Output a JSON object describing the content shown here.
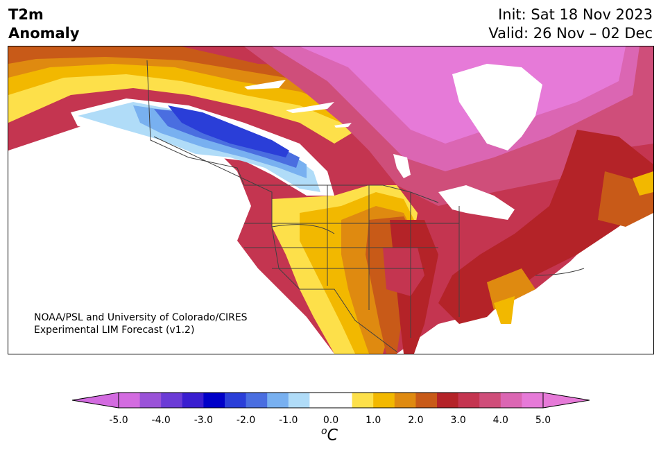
{
  "title": {
    "line1": "T2m",
    "line2": "Anomaly"
  },
  "header": {
    "init": "Init: Sat 18 Nov 2023",
    "valid": "Valid: 26 Nov – 02 Dec"
  },
  "credit": {
    "line1": "NOAA/PSL and University of Colorado/CIRES",
    "line2": "Experimental LIM Forecast (v1.2)"
  },
  "colorbar": {
    "ticks": [
      "-5.0",
      "-4.0",
      "-3.0",
      "-2.0",
      "-1.0",
      "0.0",
      "1.0",
      "2.0",
      "3.0",
      "4.0",
      "5.0"
    ],
    "unit_prefix": "o",
    "unit": "C",
    "colors": [
      "#d36be0",
      "#9a52d8",
      "#6b3bd6",
      "#3a1ed0",
      "#0000c8",
      "#2a3ed8",
      "#4a6ee0",
      "#78b0f0",
      "#b0dcf8",
      "#ffffff",
      "#ffffff",
      "#fde04a",
      "#f2b800",
      "#df8a10",
      "#c85a18",
      "#b42328",
      "#c43550",
      "#cf4e7a",
      "#db66b3",
      "#e67ad8"
    ],
    "extend_low": "#d36be0",
    "extend_high": "#e67ad8"
  },
  "map": {
    "region": "North America",
    "variable": "2 m temperature anomaly",
    "colors": {
      "pink": "#e67ad8",
      "magenta": "#db66b3",
      "rose": "#cf4e7a",
      "crimson": "#c43550",
      "red": "#b42328",
      "orange_red": "#c85a18",
      "orange": "#df8a10",
      "amber": "#f2b800",
      "yellow": "#fde04a",
      "light_blue": "#b0dcf8",
      "sky_blue": "#78b0f0",
      "mid_blue": "#4a6ee0",
      "blue": "#2a3ed8",
      "border": "#404040"
    }
  }
}
